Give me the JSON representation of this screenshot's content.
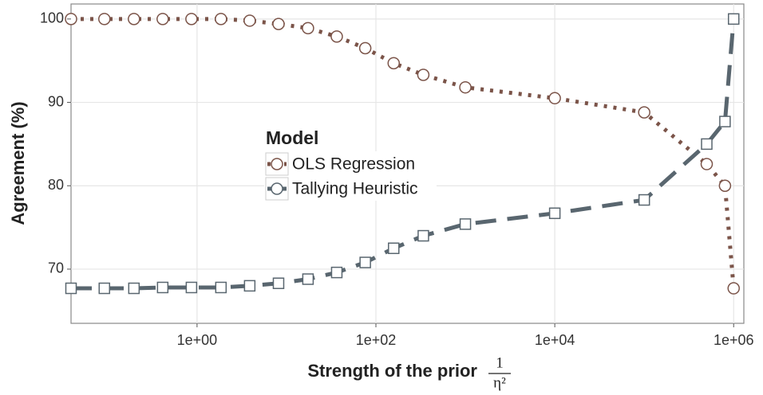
{
  "chart_data": {
    "type": "line",
    "xlabel": "Strength of the prior",
    "xlabel_fraction": {
      "numerator": "1",
      "denominator": "η²"
    },
    "ylabel": "Agreement (%)",
    "xscale": "log",
    "x": [
      0.039,
      0.092,
      0.197,
      0.413,
      0.866,
      1.85,
      3.88,
      8.15,
      17.4,
      36.5,
      76,
      158,
      339,
      1000,
      10000,
      100000,
      500000,
      800000,
      1000000
    ],
    "series": [
      {
        "name": "OLS Regression",
        "color": "#7b5449",
        "dash": "dotted",
        "marker": "circle",
        "values": [
          100,
          100,
          100,
          100,
          100,
          100,
          99.8,
          99.4,
          98.9,
          97.9,
          96.5,
          94.7,
          93.3,
          91.8,
          90.5,
          88.8,
          82.6,
          80.0,
          67.7
        ]
      },
      {
        "name": "Tallying Heuristic",
        "color": "#59666f",
        "dash": "dashed",
        "marker": "square",
        "values": [
          67.7,
          67.7,
          67.7,
          67.8,
          67.8,
          67.8,
          68.0,
          68.3,
          68.8,
          69.6,
          70.8,
          72.5,
          74.0,
          75.4,
          76.7,
          78.3,
          85.0,
          87.7,
          100
        ]
      }
    ],
    "legend_title": "Model",
    "xlim": [
      0.039,
      1300000
    ],
    "ylim": [
      63.5,
      101.8
    ],
    "xticks": [
      {
        "value": 1,
        "label": "1e+00"
      },
      {
        "value": 100,
        "label": "1e+02"
      },
      {
        "value": 10000,
        "label": "1e+04"
      },
      {
        "value": 1000000,
        "label": "1e+06"
      }
    ],
    "yticks": [
      70,
      80,
      90,
      100
    ],
    "grid": true
  }
}
